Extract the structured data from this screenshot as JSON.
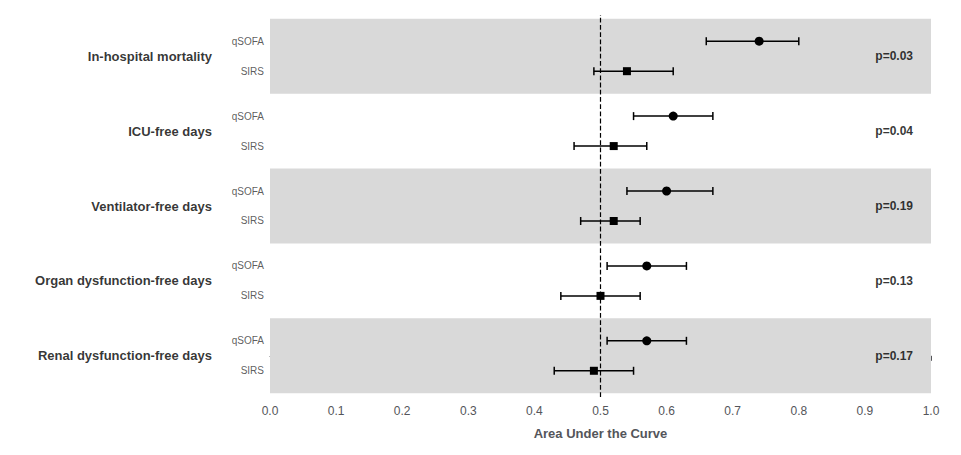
{
  "chart_data": {
    "type": "forest",
    "xlabel": "Area Under the Curve",
    "categories": [
      "In-hospital mortality",
      "ICU-free days",
      "Ventilator-free days",
      "Organ dysfunction-free days",
      "Renal dysfunction-free days"
    ],
    "series": [
      {
        "name": "qSOFA",
        "marker": "circle",
        "color": "#000000",
        "values": [
          0.74,
          0.61,
          0.6,
          0.57,
          0.57
        ],
        "ci_low": [
          0.66,
          0.55,
          0.54,
          0.51,
          0.51
        ],
        "ci_high": [
          0.8,
          0.67,
          0.67,
          0.63,
          0.63
        ]
      },
      {
        "name": "SIRS",
        "marker": "square",
        "color": "#000000",
        "values": [
          0.54,
          0.52,
          0.52,
          0.5,
          0.49
        ],
        "ci_low": [
          0.49,
          0.46,
          0.47,
          0.44,
          0.43
        ],
        "ci_high": [
          0.61,
          0.57,
          0.56,
          0.56,
          0.55
        ]
      }
    ],
    "p_values": [
      "p=0.03",
      "p=0.04",
      "p=0.19",
      "p=0.13",
      "p=0.17"
    ],
    "shaded_rows": [
      0,
      2,
      4
    ],
    "shaded_color": "#d9d9d9",
    "reference_x": 0.5,
    "xlim": [
      0,
      1
    ],
    "xticks": [
      {
        "value": 0,
        "label": "0.0"
      },
      0.1,
      0.2,
      0.3,
      0.4,
      0.5,
      0.6,
      0.7,
      0.8,
      0.9,
      {
        "value": 1,
        "label": "1.0"
      }
    ],
    "grid": false
  }
}
